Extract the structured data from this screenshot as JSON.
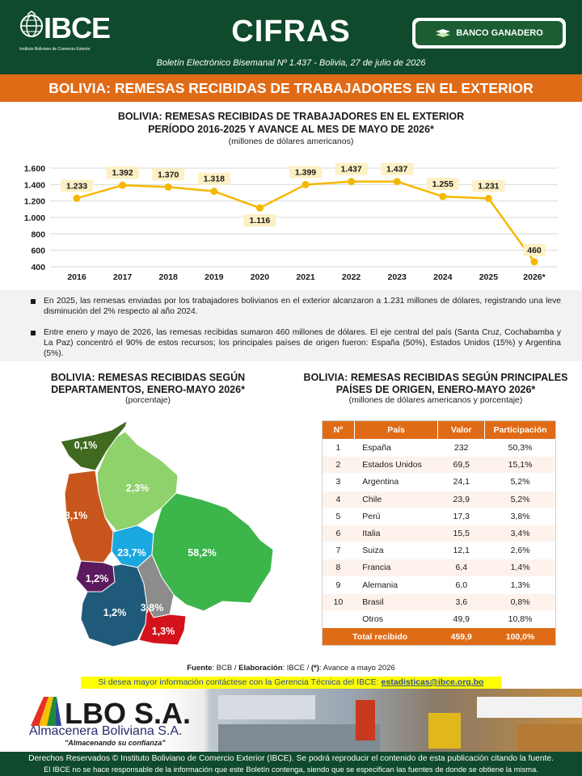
{
  "header": {
    "logo_text": "IBCE",
    "logo_sub": "Instituto Boliviano de Comercio Exterior",
    "title": "CIFRAS",
    "sponsor": "BANCO GANADERO",
    "boletin": "Boletín Electrónico Bisemanal Nº 1.437 - Bolivia, 27 de julio de 2026",
    "banner": "BOLIVIA: REMESAS RECIBIDAS DE TRABAJADORES EN EL EXTERIOR",
    "colors": {
      "green": "#0f4a2c",
      "orange": "#e06b17",
      "line": "#f5b800"
    }
  },
  "line_chart": {
    "title1": "BOLIVIA: REMESAS RECIBIDAS DE TRABAJADORES EN EL EXTERIOR",
    "title2": "PERÍODO 2016-2025 Y AVANCE AL MES DE MAYO DE 2026*",
    "subtitle": "(millones de dólares americanos)"
  },
  "chart_data": [
    {
      "type": "line",
      "title": "BOLIVIA: REMESAS RECIBIDAS DE TRABAJADORES EN EL EXTERIOR PERÍODO 2016-2025 Y AVANCE AL MES DE MAYO DE 2026*",
      "subtitle": "(millones de dólares americanos)",
      "categories": [
        "2016",
        "2017",
        "2018",
        "2019",
        "2020",
        "2021",
        "2022",
        "2023",
        "2024",
        "2025",
        "2026*"
      ],
      "values": [
        1233,
        1392,
        1370,
        1318,
        1116,
        1399,
        1437,
        1437,
        1255,
        1231,
        460
      ],
      "labels": [
        "1.233",
        "1.392",
        "1.370",
        "1.318",
        "1.116",
        "1.399",
        "1.437",
        "1.437",
        "1.255",
        "1.231",
        "460"
      ],
      "ylim": [
        400,
        1600
      ],
      "yticks": [
        400,
        600,
        800,
        1000,
        1200,
        1400,
        1600
      ],
      "ytick_labels": [
        "400",
        "600",
        "800",
        "1.000",
        "1.200",
        "1.400",
        "1.600"
      ],
      "grid": true,
      "line_color": "#f5b800",
      "label_bg": "#fdf0c4"
    },
    {
      "type": "table",
      "title": "BOLIVIA: REMESAS RECIBIDAS SEGÚN PRINCIPALES PAÍSES DE ORIGEN, ENERO-MAYO 2026*",
      "columns": [
        "Nº",
        "País",
        "Valor",
        "Participación"
      ],
      "rows": [
        [
          "1",
          "España",
          "232",
          "50,3%"
        ],
        [
          "2",
          "Estados Unidos",
          "69,5",
          "15,1%"
        ],
        [
          "3",
          "Argentina",
          "24,1",
          "5,2%"
        ],
        [
          "4",
          "Chile",
          "23,9",
          "5,2%"
        ],
        [
          "5",
          "Perú",
          "17,3",
          "3,8%"
        ],
        [
          "6",
          "Italia",
          "15,5",
          "3,4%"
        ],
        [
          "7",
          "Suiza",
          "12,1",
          "2,6%"
        ],
        [
          "8",
          "Francia",
          "6,4",
          "1,4%"
        ],
        [
          "9",
          "Alemania",
          "6,0",
          "1,3%"
        ],
        [
          "10",
          "Brasil",
          "3,6",
          "0,8%"
        ],
        [
          "",
          "Otros",
          "49,9",
          "10,8%"
        ]
      ],
      "total": [
        "Total recibido",
        "459,9",
        "100,0%"
      ]
    }
  ],
  "bullets": [
    "En 2025, las remesas enviadas por los trabajadores bolivianos en el exterior alcanzaron a 1.231 millones de dólares, registrando una leve disminución del 2% respecto al año 2024.",
    "Entre enero y mayo de 2026, las remesas recibidas sumaron 460 millones de dólares. El eje central del país (Santa Cruz, Cochabamba y La Paz) concentró el 90% de estos recursos; los principales países de origen fueron: España (50%), Estados Unidos (15%) y Argentina (5%)."
  ],
  "map": {
    "title1": "BOLIVIA: REMESAS RECIBIDAS SEGÚN",
    "title2": "DEPARTAMENTOS, ENERO-MAYO 2026*",
    "subtitle": "(porcentaje)",
    "regions": [
      {
        "label": "0,1%",
        "color": "#3f6a20"
      },
      {
        "label": "2,3%",
        "color": "#8fd16a"
      },
      {
        "label": "8,1%",
        "color": "#c8561c"
      },
      {
        "label": "23,7%",
        "color": "#1aa8e0"
      },
      {
        "label": "58,2%",
        "color": "#3cb54a"
      },
      {
        "label": "1,2%",
        "color": "#5c1a5e"
      },
      {
        "label": "1,2%",
        "color": "#1f5a7a"
      },
      {
        "label": "3,8%",
        "color": "#8c8c8c"
      },
      {
        "label": "1,3%",
        "color": "#d4121c"
      }
    ]
  },
  "table_section": {
    "title1": "BOLIVIA: REMESAS RECIBIDAS SEGÚN PRINCIPALES",
    "title2": "PAÍSES DE ORIGEN, ENERO-MAYO 2026*",
    "subtitle": "(millones de dólares americanos y porcentaje)"
  },
  "source": {
    "fuente_label": "Fuente",
    "fuente_value": ": BCB / ",
    "elab_label": "Elaboración",
    "elab_value": ": IBCE / ",
    "note_label": "(*)",
    "note_value": ": Avance a mayo 2026"
  },
  "contact": {
    "text": "Si desea mayor información contáctese con la Gerencia Técnica del IBCE: ",
    "email": "estadisticas@ibce.org.bo"
  },
  "ad": {
    "brand": "LBO S.A.",
    "sub": "Almacenera Boliviana S.A.",
    "slogan": "\"Almacenando su confianza\""
  },
  "footer": {
    "line1": "Derechos Reservados © Instituto Boliviano de Comercio Exterior (IBCE). Se podrá reproducir el contenido de esta publicación citando la fuente.",
    "line2": "El IBCE no se hace responsable de la información que este Boletín contenga, siendo que se especifican las fuentes de donde se obtiene la misma."
  }
}
